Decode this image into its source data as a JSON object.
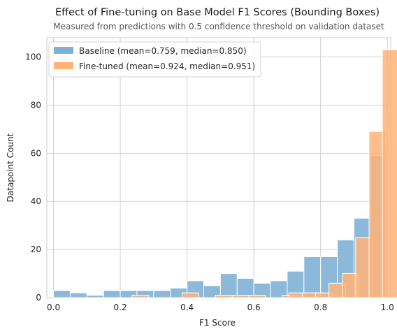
{
  "chart_data": {
    "type": "histogram",
    "title": "Effect of Fine-tuning on Base Model F1 Scores (Bounding Boxes)",
    "subtitle": "Measured from predictions with 0.5 confidence threshold on validation dataset",
    "xlabel": "F1 Score",
    "ylabel": "Datapoint Count",
    "xlim": [
      -0.02,
      1.01
    ],
    "ylim": [
      0,
      108
    ],
    "xticks": [
      "0.0",
      "0.2",
      "0.4",
      "0.6",
      "0.8",
      "1.0"
    ],
    "yticks": [
      "0",
      "20",
      "40",
      "60",
      "80",
      "100"
    ],
    "grid": true,
    "legend_position": "top-left",
    "bin_width": 0.05,
    "series": [
      {
        "name": "Baseline (mean=0.759, median=0.850)",
        "color": "#7fb1d6",
        "bins": [
          {
            "x": 0.0,
            "count": 3
          },
          {
            "x": 0.05,
            "count": 2
          },
          {
            "x": 0.1,
            "count": 1
          },
          {
            "x": 0.15,
            "count": 3
          },
          {
            "x": 0.2,
            "count": 3
          },
          {
            "x": 0.25,
            "count": 3
          },
          {
            "x": 0.3,
            "count": 3
          },
          {
            "x": 0.35,
            "count": 4
          },
          {
            "x": 0.4,
            "count": 7
          },
          {
            "x": 0.45,
            "count": 5
          },
          {
            "x": 0.5,
            "count": 10
          },
          {
            "x": 0.55,
            "count": 8
          },
          {
            "x": 0.6,
            "count": 6
          },
          {
            "x": 0.65,
            "count": 7
          },
          {
            "x": 0.7,
            "count": 11
          },
          {
            "x": 0.75,
            "count": 17
          },
          {
            "x": 0.8,
            "count": 17
          },
          {
            "x": 0.85,
            "count": 24
          },
          {
            "x": 0.9,
            "count": 33
          },
          {
            "x": 0.95,
            "count": 59
          }
        ]
      },
      {
        "name": "Fine-tuned (mean=0.924, median=0.951)",
        "color": "#ffb378",
        "bins": [
          {
            "x": 0.235,
            "count": 1
          },
          {
            "x": 0.385,
            "count": 2
          },
          {
            "x": 0.485,
            "count": 1
          },
          {
            "x": 0.535,
            "count": 1
          },
          {
            "x": 0.585,
            "count": 1
          },
          {
            "x": 0.685,
            "count": 1
          },
          {
            "x": 0.705,
            "count": 2
          },
          {
            "x": 0.745,
            "count": 2
          },
          {
            "x": 0.785,
            "count": 2
          },
          {
            "x": 0.825,
            "count": 6
          },
          {
            "x": 0.865,
            "count": 10
          },
          {
            "x": 0.905,
            "count": 25
          },
          {
            "x": 0.945,
            "count": 69
          },
          {
            "x": 0.985,
            "count": 103
          }
        ]
      }
    ]
  }
}
